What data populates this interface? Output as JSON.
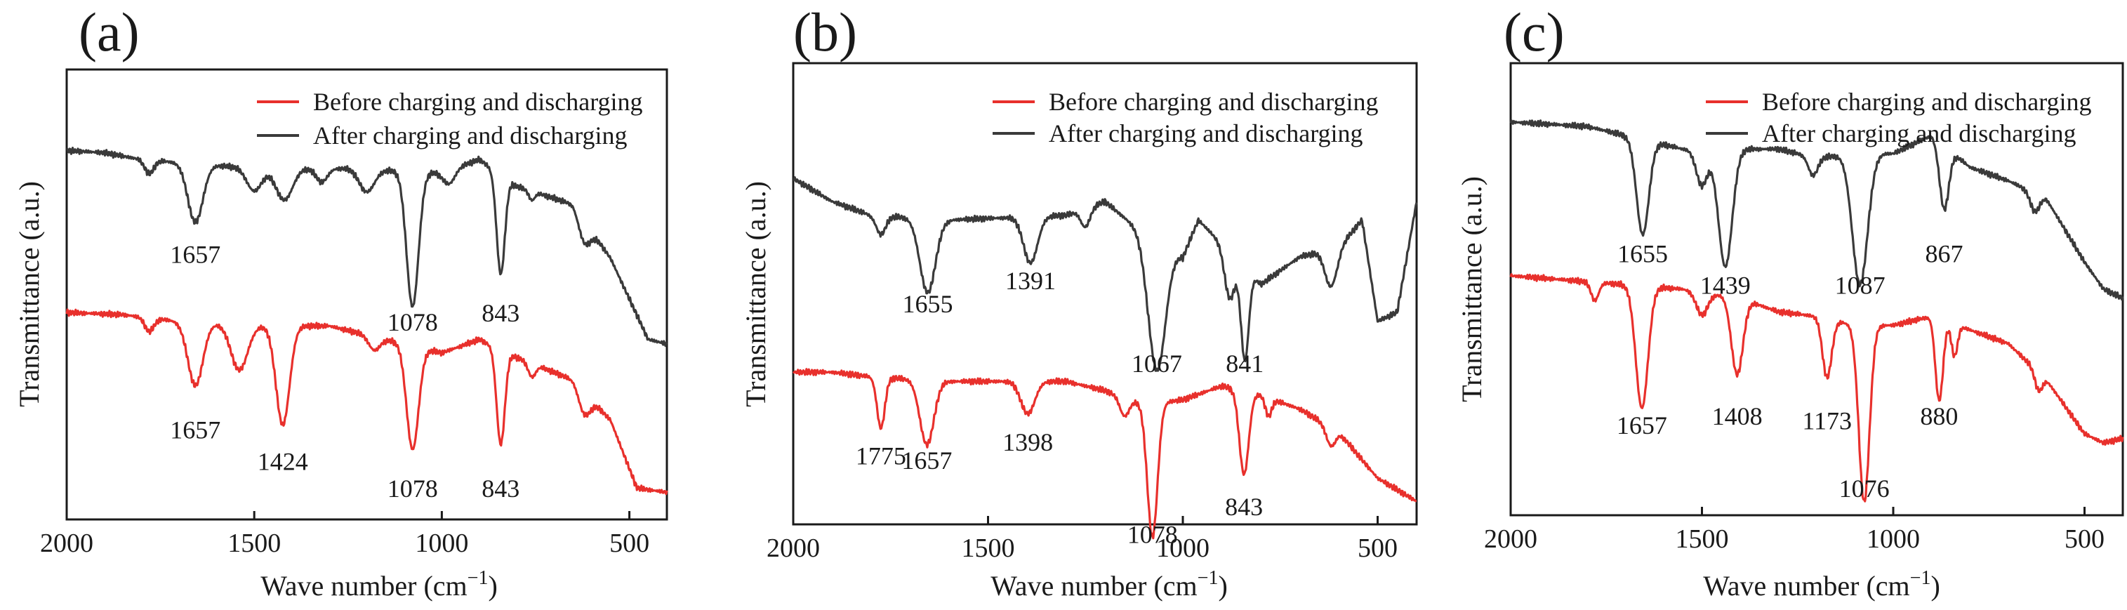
{
  "colors": {
    "before": "#e8302c",
    "after": "#3a3a3a"
  },
  "chart_data": [
    {
      "type": "line",
      "panel_label": "(a)",
      "xlabel": "Wave number (cm",
      "xlabel_sup": "−1",
      "xlabel_end": ")",
      "ylabel": "Transmittance (a.u.)",
      "xlim": [
        2000,
        400
      ],
      "ylim": [
        0,
        100
      ],
      "xticks": [
        2000,
        1500,
        1000,
        500
      ],
      "legend": [
        "Before charging and discharging",
        "After charging and discharging"
      ],
      "series": [
        {
          "name": "After charging and discharging",
          "color_key": "after",
          "baseline": [
            [
              2000,
              82
            ],
            [
              1900,
              81.5
            ],
            [
              1800,
              80
            ],
            [
              1500,
              78
            ],
            [
              1250,
              78
            ],
            [
              1000,
              77
            ],
            [
              900,
              80
            ],
            [
              800,
              74
            ],
            [
              650,
              70
            ],
            [
              550,
              58
            ],
            [
              450,
              40
            ],
            [
              400,
              39
            ]
          ],
          "dips": [
            [
              1780,
              3,
              12
            ],
            [
              1657,
              13,
              20
            ],
            [
              1500,
              5,
              20
            ],
            [
              1420,
              7,
              22
            ],
            [
              1320,
              3,
              15
            ],
            [
              1200,
              5,
              20
            ],
            [
              1078,
              30,
              16
            ],
            [
              980,
              3,
              15
            ],
            [
              843,
              22,
              11
            ],
            [
              760,
              2,
              8
            ],
            [
              620,
              5,
              15
            ]
          ]
        },
        {
          "name": "Before charging and discharging",
          "color_key": "before",
          "baseline": [
            [
              2000,
              46
            ],
            [
              1850,
              45.5
            ],
            [
              1700,
              44
            ],
            [
              1500,
              43
            ],
            [
              1300,
              43
            ],
            [
              1150,
              40
            ],
            [
              1000,
              37
            ],
            [
              900,
              40
            ],
            [
              800,
              36
            ],
            [
              650,
              31
            ],
            [
              550,
              22
            ],
            [
              480,
              7
            ],
            [
              400,
              6
            ]
          ],
          "dips": [
            [
              1780,
              3,
              12
            ],
            [
              1657,
              14,
              20
            ],
            [
              1540,
              10,
              22
            ],
            [
              1424,
              22,
              18
            ],
            [
              1180,
              3,
              15
            ],
            [
              1078,
              23,
              16
            ],
            [
              843,
              21,
              11
            ],
            [
              760,
              3,
              10
            ],
            [
              620,
              5,
              15
            ]
          ]
        }
      ],
      "peak_labels": [
        {
          "text": "1657",
          "x": 1657,
          "y": 57
        },
        {
          "text": "1078",
          "x": 1078,
          "y": 42
        },
        {
          "text": "843",
          "x": 843,
          "y": 44
        },
        {
          "text": "1657",
          "x": 1657,
          "y": 18
        },
        {
          "text": "1424",
          "x": 1424,
          "y": 11
        },
        {
          "text": "1078",
          "x": 1078,
          "y": 5
        },
        {
          "text": "843",
          "x": 843,
          "y": 5
        }
      ]
    },
    {
      "type": "line",
      "panel_label": "(b)",
      "xlabel": "Wave number (cm",
      "xlabel_sup": "−1",
      "xlabel_end": ")",
      "ylabel": "Transmittance (a.u.)",
      "xlim": [
        2000,
        400
      ],
      "ylim": [
        0,
        100
      ],
      "xticks": [
        2000,
        1500,
        1000,
        500
      ],
      "legend": [
        "Before charging and discharging",
        "After charging and discharging"
      ],
      "series": [
        {
          "name": "After charging and discharging",
          "color_key": "after",
          "baseline": [
            [
              2000,
              75
            ],
            [
              1900,
              70
            ],
            [
              1800,
              67
            ],
            [
              1600,
              66
            ],
            [
              1300,
              67
            ],
            [
              1200,
              70
            ],
            [
              1100,
              63
            ],
            [
              1000,
              58
            ],
            [
              960,
              66
            ],
            [
              800,
              52
            ],
            [
              700,
              58
            ],
            [
              600,
              60
            ],
            [
              540,
              66
            ],
            [
              500,
              44
            ],
            [
              450,
              46
            ],
            [
              400,
              70
            ]
          ],
          "dips": [
            [
              1775,
              4,
              12
            ],
            [
              1655,
              16,
              20
            ],
            [
              1391,
              10,
              18
            ],
            [
              1250,
              4,
              12
            ],
            [
              1067,
              28,
              22
            ],
            [
              880,
              10,
              13
            ],
            [
              841,
              20,
              10
            ],
            [
              620,
              8,
              15
            ]
          ]
        },
        {
          "name": "Before charging and discharging",
          "color_key": "before",
          "baseline": [
            [
              2000,
              33
            ],
            [
              1900,
              33
            ],
            [
              1800,
              32
            ],
            [
              1600,
              31
            ],
            [
              1300,
              31
            ],
            [
              1200,
              29
            ],
            [
              1100,
              26
            ],
            [
              1000,
              27
            ],
            [
              900,
              30
            ],
            [
              800,
              28
            ],
            [
              700,
              25
            ],
            [
              600,
              20
            ],
            [
              500,
              10
            ],
            [
              400,
              5
            ]
          ],
          "dips": [
            [
              1775,
              11,
              10
            ],
            [
              1657,
              14,
              18
            ],
            [
              1398,
              7,
              18
            ],
            [
              1150,
              4,
              12
            ],
            [
              1078,
              29,
              13
            ],
            [
              843,
              18,
              12
            ],
            [
              780,
              4,
              8
            ],
            [
              620,
              4,
              12
            ]
          ]
        }
      ],
      "peak_labels": [
        {
          "text": "1655",
          "x": 1655,
          "y": 46
        },
        {
          "text": "1391",
          "x": 1391,
          "y": 51
        },
        {
          "text": "1067",
          "x": 1067,
          "y": 33
        },
        {
          "text": "841",
          "x": 841,
          "y": 33
        },
        {
          "text": "1775",
          "x": 1775,
          "y": 13
        },
        {
          "text": "1657",
          "x": 1657,
          "y": 12
        },
        {
          "text": "1398",
          "x": 1398,
          "y": 16
        },
        {
          "text": "1078",
          "x": 1078,
          "y": -4
        },
        {
          "text": "843",
          "x": 843,
          "y": 2
        }
      ]
    },
    {
      "type": "line",
      "panel_label": "(c)",
      "xlabel": "Wave number (cm",
      "xlabel_sup": "−1",
      "xlabel_end": ")",
      "ylabel": "Transmittance (a.u.)",
      "xlim": [
        2000,
        400
      ],
      "ylim": [
        0,
        100
      ],
      "xticks": [
        2000,
        1500,
        1000,
        500
      ],
      "legend": [
        "Before charging and discharging",
        "After charging and discharging"
      ],
      "series": [
        {
          "name": "After charging and discharging",
          "color_key": "after",
          "baseline": [
            [
              2000,
              87
            ],
            [
              1800,
              86
            ],
            [
              1700,
              84
            ],
            [
              1550,
              81
            ],
            [
              1300,
              81
            ],
            [
              1200,
              79
            ],
            [
              1100,
              80
            ],
            [
              1000,
              80
            ],
            [
              900,
              84
            ],
            [
              800,
              77
            ],
            [
              700,
              74
            ],
            [
              600,
              70
            ],
            [
              500,
              56
            ],
            [
              450,
              50
            ],
            [
              400,
              48
            ]
          ],
          "dips": [
            [
              1655,
              21,
              16
            ],
            [
              1500,
              8,
              15
            ],
            [
              1439,
              26,
              18
            ],
            [
              1210,
              4,
              12
            ],
            [
              1087,
              29,
              20
            ],
            [
              867,
              14,
              12
            ],
            [
              630,
              4,
              12
            ]
          ]
        },
        {
          "name": "Before charging and discharging",
          "color_key": "before",
          "baseline": [
            [
              2000,
              53
            ],
            [
              1850,
              52
            ],
            [
              1700,
              51
            ],
            [
              1550,
              50
            ],
            [
              1400,
              48
            ],
            [
              1300,
              45
            ],
            [
              1200,
              44
            ],
            [
              1100,
              42
            ],
            [
              1000,
              42
            ],
            [
              900,
              44
            ],
            [
              800,
              41
            ],
            [
              700,
              38
            ],
            [
              600,
              30
            ],
            [
              500,
              18
            ],
            [
              450,
              16
            ],
            [
              400,
              17
            ]
          ],
          "dips": [
            [
              1780,
              4,
              10
            ],
            [
              1657,
              27,
              16
            ],
            [
              1500,
              5,
              15
            ],
            [
              1408,
              17,
              15
            ],
            [
              1173,
              13,
              12
            ],
            [
              1076,
              39,
              14
            ],
            [
              880,
              18,
              10
            ],
            [
              840,
              7,
              8
            ],
            [
              620,
              4,
              10
            ]
          ]
        }
      ],
      "peak_labels": [
        {
          "text": "1655",
          "x": 1655,
          "y": 56
        },
        {
          "text": "1439",
          "x": 1439,
          "y": 49
        },
        {
          "text": "1087",
          "x": 1087,
          "y": 49
        },
        {
          "text": "867",
          "x": 867,
          "y": 56
        },
        {
          "text": "1657",
          "x": 1657,
          "y": 18
        },
        {
          "text": "1408",
          "x": 1408,
          "y": 20
        },
        {
          "text": "1173",
          "x": 1173,
          "y": 19
        },
        {
          "text": "1076",
          "x": 1076,
          "y": 4
        },
        {
          "text": "880",
          "x": 880,
          "y": 20
        }
      ]
    }
  ]
}
